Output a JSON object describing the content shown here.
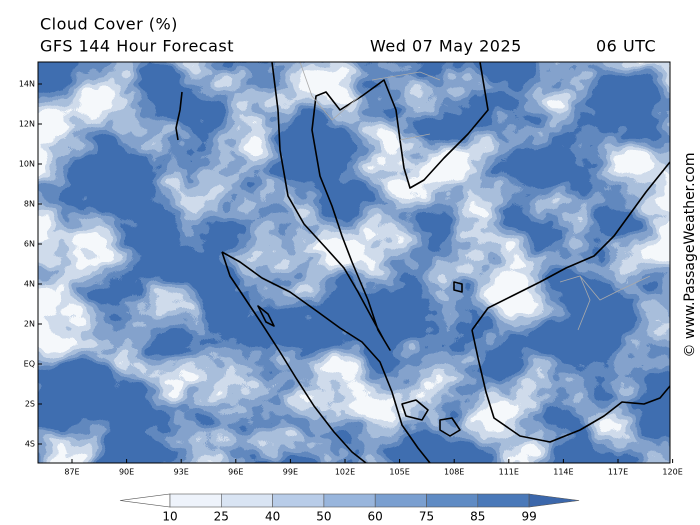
{
  "header": {
    "title": "Cloud Cover (%)",
    "model": "GFS 144 Hour Forecast",
    "date": "Wed 07 May 2025",
    "time": "06 UTC"
  },
  "map": {
    "lat_labels": [
      "14N",
      "12N",
      "10N",
      "8N",
      "6N",
      "4N",
      "2N",
      "EQ",
      "2S",
      "4S"
    ],
    "lon_labels": [
      "87E",
      "90E",
      "93E",
      "96E",
      "99E",
      "102E",
      "105E",
      "108E",
      "111E",
      "114E",
      "117E",
      "120E"
    ]
  },
  "colorbar": {
    "levels": [
      10,
      25,
      40,
      50,
      60,
      75,
      85,
      99
    ],
    "colors": [
      "#ffffff",
      "#eef3fb",
      "#d9e4f3",
      "#b8cce8",
      "#98b5dc",
      "#7a9fd0",
      "#5f8bc4",
      "#4a79b9",
      "#3b67ab"
    ]
  },
  "watermark": "© www.PassageWeather.com"
}
